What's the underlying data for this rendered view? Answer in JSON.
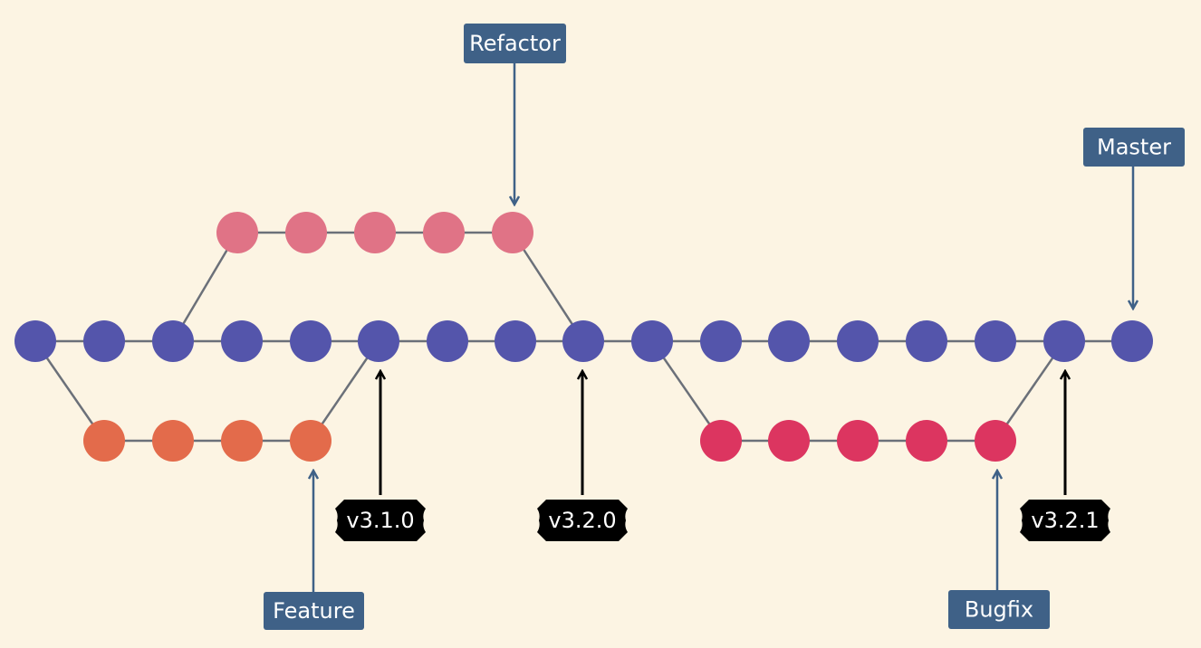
{
  "colors": {
    "background": "#fcf4e3",
    "master_commit": "#5455ab",
    "refactor_commit": "#e07386",
    "feature_commit": "#e36b4b",
    "bugfix_commit": "#dc3560",
    "branch_label": "#3f6187",
    "tag_label": "#000000",
    "edge": "#6b7079"
  },
  "branches": {
    "master": {
      "label": "Master",
      "commits": 17
    },
    "refactor": {
      "label": "Refactor",
      "commits": 5
    },
    "feature": {
      "label": "Feature",
      "commits": 4
    },
    "bugfix": {
      "label": "Bugfix",
      "commits": 5
    }
  },
  "tags": {
    "v310": {
      "label": "v3.1.0"
    },
    "v320": {
      "label": "v3.2.0"
    },
    "v321": {
      "label": "v3.2.1"
    }
  }
}
